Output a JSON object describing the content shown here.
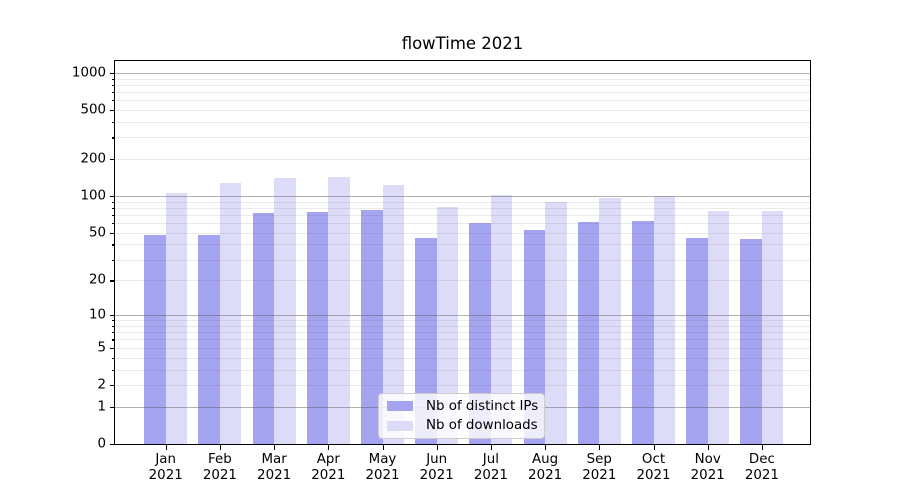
{
  "chart_data": {
    "type": "bar",
    "title": "flowTime 2021",
    "categories": [
      "Jan",
      "Feb",
      "Mar",
      "Apr",
      "May",
      "Jun",
      "Jul",
      "Aug",
      "Sep",
      "Oct",
      "Nov",
      "Dec"
    ],
    "year": "2021",
    "series": [
      {
        "name": "Nb of distinct IPs",
        "color": "#a4a4f1",
        "values": [
          48,
          48,
          73,
          74,
          77,
          45,
          60,
          53,
          61,
          62,
          45,
          44
        ]
      },
      {
        "name": "Nb of downloads",
        "color": "#dcdcf9",
        "values": [
          105,
          127,
          140,
          143,
          124,
          81,
          102,
          90,
          96,
          101,
          76,
          76
        ]
      }
    ],
    "yscale": "log1p",
    "ylim": [
      0,
      1250
    ],
    "yticks": [
      0,
      1,
      2,
      5,
      10,
      20,
      50,
      100,
      200,
      500,
      1000
    ],
    "xlabel": "",
    "ylabel": "",
    "grid": "on",
    "grid_major_color": "#b0b0b0",
    "grid_minor_color": "#e9e9e9",
    "legend": {
      "position": "lower center",
      "entries": [
        "Nb of distinct IPs",
        "Nb of downloads"
      ]
    }
  }
}
